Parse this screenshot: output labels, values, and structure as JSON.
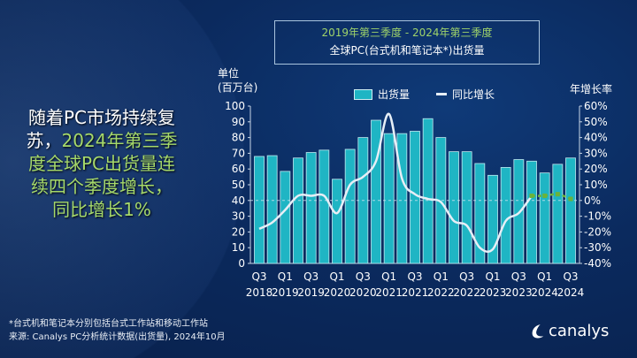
{
  "title_box": {
    "line1": "2019年第三季度 - 2024年第三季度",
    "line2": "全球PC(台式机和笔记本*)出货量"
  },
  "headline": {
    "white1": "随着PC市场持续复",
    "white2": "苏，",
    "green1": "2024年第三季",
    "green2": "度全球PC出货量连",
    "green3": "续四个季度增长，",
    "green4": "同比增长1%"
  },
  "footnote": {
    "line1": "*台式机和笔记本分别包括台式工作站和移动工作站",
    "line2": "来源: Canalys PC分析统计数据(出货量), 2024年10月"
  },
  "logo": {
    "text": "canalys"
  },
  "colors": {
    "bar": "#1fb5c4",
    "line": "#e6eef6",
    "highlight": "#6bb33a",
    "text_green": "#a6d96a"
  },
  "chart_data": {
    "type": "bar+line",
    "left_axis_label": "单位\n(百万台)",
    "left_axis_label_lines": [
      "单位",
      "(百万台)"
    ],
    "right_axis_label": "年增长率",
    "ylim": [
      0,
      100
    ],
    "y_ticks": [
      0,
      10,
      20,
      30,
      40,
      50,
      60,
      70,
      80,
      90,
      100
    ],
    "y2lim": [
      -40,
      60
    ],
    "y2_ticks": [
      "-40%",
      "-30%",
      "-20%",
      "-10%",
      "0%",
      "10%",
      "20%",
      "30%",
      "40%",
      "50%",
      "60%"
    ],
    "quarters": [
      "Q3 2018",
      "Q4 2018",
      "Q1 2019",
      "Q2 2019",
      "Q3 2019",
      "Q4 2019",
      "Q1 2020",
      "Q2 2020",
      "Q3 2020",
      "Q4 2020",
      "Q1 2021",
      "Q2 2021",
      "Q3 2021",
      "Q4 2021",
      "Q1 2022",
      "Q2 2022",
      "Q3 2022",
      "Q4 2022",
      "Q1 2023",
      "Q2 2023",
      "Q3 2023",
      "Q4 2023",
      "Q1 2024",
      "Q2 2024",
      "Q3 2024"
    ],
    "x_tick_labels": [
      [
        "Q3",
        "2018"
      ],
      [
        "Q1",
        "2019"
      ],
      [
        "Q3",
        "2019"
      ],
      [
        "Q1",
        "2020"
      ],
      [
        "Q3",
        "2020"
      ],
      [
        "Q1",
        "2021"
      ],
      [
        "Q3",
        "2021"
      ],
      [
        "Q1",
        "2022"
      ],
      [
        "Q3",
        "2022"
      ],
      [
        "Q1",
        "2023"
      ],
      [
        "Q3",
        "2023"
      ],
      [
        "Q1",
        "2024"
      ],
      [
        "Q3",
        "2024"
      ]
    ],
    "series": [
      {
        "name": "出货量",
        "type": "bar",
        "axis": "left",
        "values": [
          68,
          68.5,
          58.5,
          67,
          70.5,
          72,
          53.5,
          72.5,
          80,
          91,
          82.5,
          82.5,
          84,
          92,
          80,
          71,
          71,
          63.5,
          56,
          61,
          66,
          65,
          57.5,
          63,
          67
        ]
      },
      {
        "name": "同比增长",
        "type": "line",
        "axis": "right",
        "values": [
          -18,
          -14,
          -6,
          3,
          3,
          3,
          -8,
          10,
          15,
          25,
          55,
          14,
          4,
          1,
          -1,
          -13,
          -16,
          -30,
          -31,
          -13,
          -8,
          3,
          3,
          4,
          1
        ],
        "highlight_from": "Q4 2023"
      }
    ],
    "reference_line": {
      "axis": "right",
      "value": 0,
      "style": "dashed"
    }
  }
}
